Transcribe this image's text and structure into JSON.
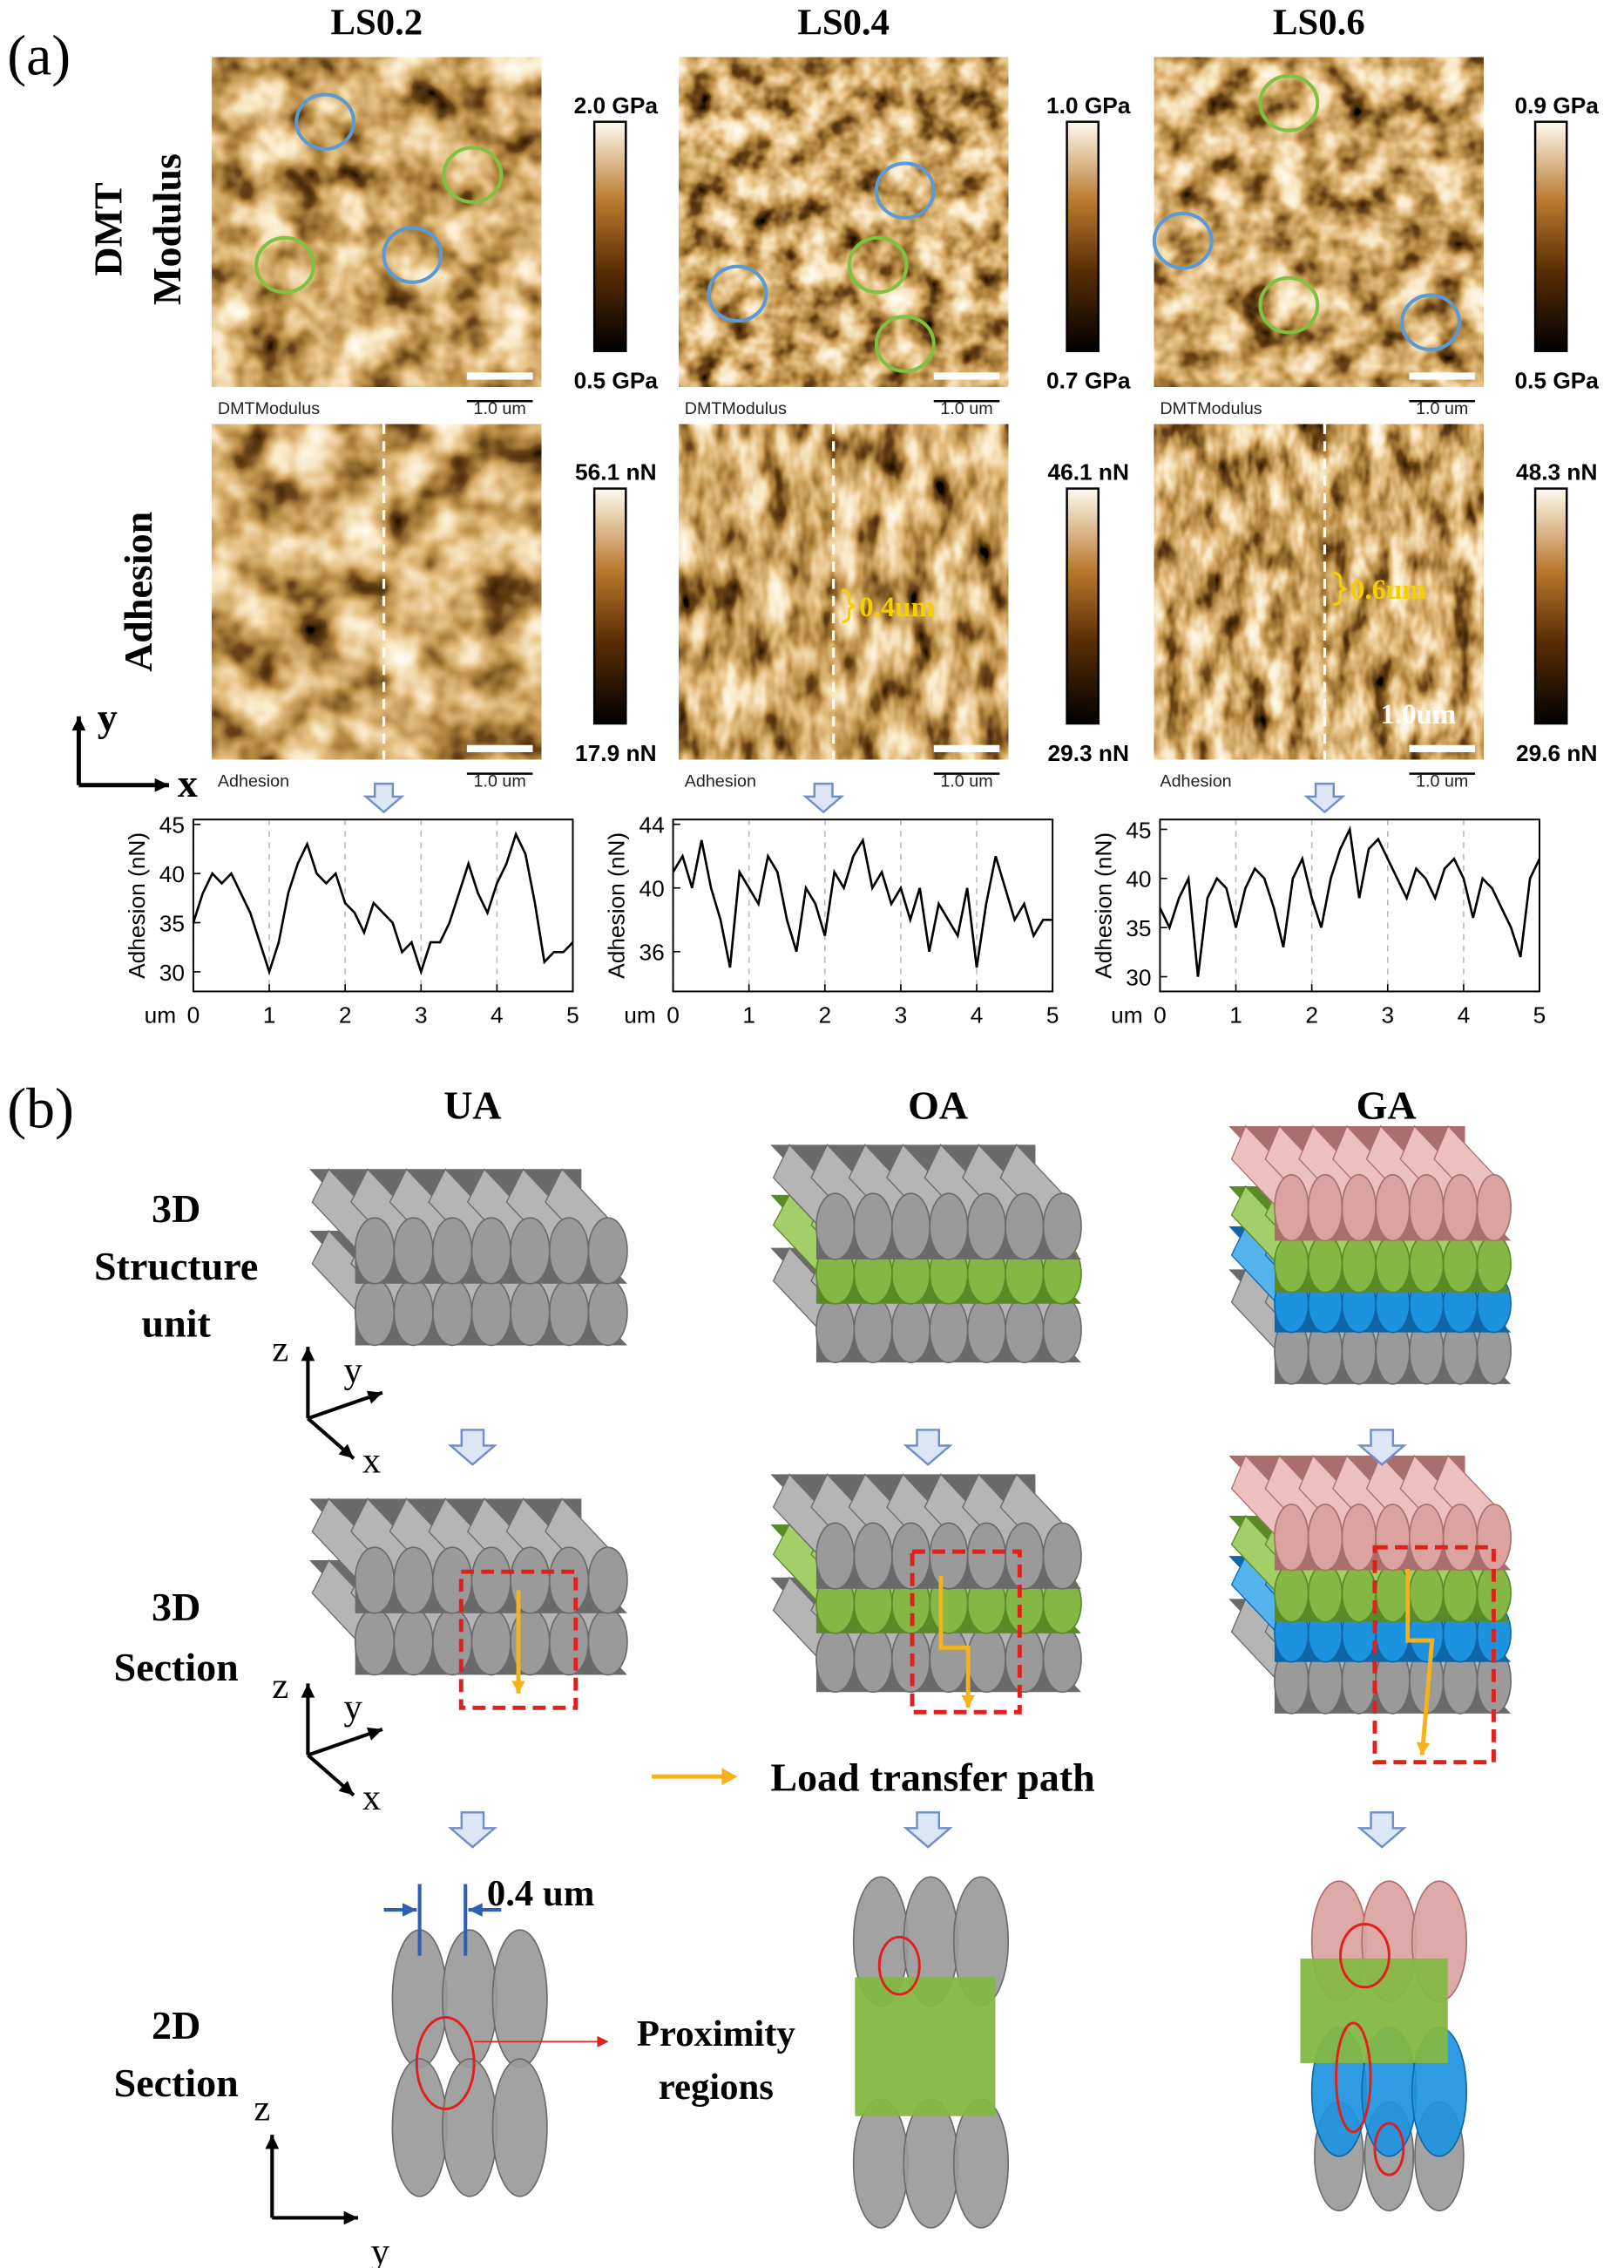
{
  "figure": {
    "panel_a": {
      "label": "(a)",
      "columns": [
        "LS0.2",
        "LS0.4",
        "LS0.6"
      ],
      "row_labels": [
        [
          "DMT",
          "Modulus"
        ],
        [
          "Adhesion"
        ]
      ],
      "axes": [
        "y",
        "x"
      ],
      "images": [
        {
          "modulus": {
            "caption": "DMTModulus",
            "scale": "1.0 um",
            "colorbar": [
              "2.0 GPa",
              "0.5 GPa"
            ]
          },
          "adhesion": {
            "caption": "Adhesion",
            "scale": "1.0 um",
            "colorbar": [
              "56.1 nN",
              "17.9 nN"
            ]
          }
        },
        {
          "modulus": {
            "caption": "DMTModulus",
            "scale": "1.0 um",
            "colorbar": [
              "1.0 GPa",
              "0.7 GPa"
            ]
          },
          "adhesion": {
            "caption": "Adhesion",
            "scale": "1.0 um",
            "colorbar": [
              "46.1 nN",
              "29.3 nN"
            ],
            "annotation": "0.4um"
          }
        },
        {
          "modulus": {
            "caption": "DMTModulus",
            "scale": "1.0 um",
            "colorbar": [
              "0.9 GPa",
              "0.5 GPa"
            ]
          },
          "adhesion": {
            "caption": "Adhesion",
            "scale": "1.0 um",
            "colorbar": [
              "48.3 nN",
              "29.6 nN"
            ],
            "annotation": "0.6um",
            "scale_text": "1.0um"
          }
        }
      ]
    },
    "panel_b": {
      "label": "(b)",
      "columns": [
        "UA",
        "OA",
        "GA"
      ],
      "row_labels": [
        [
          "3D",
          "Structure",
          "unit"
        ],
        [
          "3D",
          "Section"
        ],
        [
          "2D",
          "Section"
        ]
      ],
      "axes_3d": [
        "z",
        "y",
        "x"
      ],
      "axes_2d": [
        "z",
        "y"
      ],
      "legend": "Load transfer path",
      "dimension": "0.4 um",
      "callout": [
        "Proximity",
        "regions"
      ]
    }
  },
  "chart_data": [
    {
      "type": "line",
      "y_label": "Adhesion (nN)",
      "x_label": "um",
      "color": "#000000",
      "grid": true,
      "x": [
        0,
        0.125,
        0.25,
        0.375,
        0.5,
        0.625,
        0.75,
        0.875,
        1,
        1.125,
        1.25,
        1.375,
        1.5,
        1.625,
        1.75,
        1.875,
        2,
        2.125,
        2.25,
        2.375,
        2.5,
        2.625,
        2.75,
        2.875,
        3,
        3.125,
        3.25,
        3.375,
        3.5,
        3.625,
        3.75,
        3.875,
        4,
        4.125,
        4.25,
        4.375,
        4.5,
        4.625,
        4.75,
        4.875,
        5
      ],
      "values": [
        35,
        38,
        40,
        39,
        40,
        38,
        36,
        33,
        30,
        33,
        38,
        41,
        43,
        40,
        39,
        40,
        37,
        36,
        34,
        37,
        36,
        35,
        32,
        33,
        30,
        33,
        33,
        35,
        38,
        41,
        38,
        36,
        39,
        41,
        44,
        42,
        37,
        31,
        32,
        32,
        33
      ],
      "xlim": [
        0,
        5
      ],
      "xticks": [
        0,
        1,
        2,
        3,
        4,
        5
      ],
      "ylim": [
        28,
        45.5
      ],
      "yticks": [
        30,
        35,
        40,
        45
      ]
    },
    {
      "type": "line",
      "y_label": "Adhesion (nN)",
      "x_label": "um",
      "color": "#000000",
      "grid": true,
      "x": [
        0,
        0.125,
        0.25,
        0.375,
        0.5,
        0.625,
        0.75,
        0.875,
        1,
        1.125,
        1.25,
        1.375,
        1.5,
        1.625,
        1.75,
        1.875,
        2,
        2.125,
        2.25,
        2.375,
        2.5,
        2.625,
        2.75,
        2.875,
        3,
        3.125,
        3.25,
        3.375,
        3.5,
        3.625,
        3.75,
        3.875,
        4,
        4.125,
        4.25,
        4.375,
        4.5,
        4.625,
        4.75,
        4.875,
        5
      ],
      "values": [
        41,
        42,
        40,
        43,
        40,
        38,
        35,
        41,
        40,
        39,
        42,
        41,
        38,
        36,
        40,
        39,
        37,
        41,
        40,
        42,
        43,
        40,
        41,
        39,
        40,
        38,
        40,
        36,
        39,
        38,
        37,
        40,
        35,
        39,
        42,
        40,
        38,
        39,
        37,
        38,
        38
      ],
      "xlim": [
        0,
        5
      ],
      "xticks": [
        0,
        1,
        2,
        3,
        4,
        5
      ],
      "ylim": [
        33.5,
        44.3
      ],
      "yticks": [
        36,
        40,
        44
      ]
    },
    {
      "type": "line",
      "y_label": "Adhesion (nN)",
      "x_label": "um",
      "color": "#000000",
      "grid": true,
      "x": [
        0,
        0.125,
        0.25,
        0.375,
        0.5,
        0.625,
        0.75,
        0.875,
        1,
        1.125,
        1.25,
        1.375,
        1.5,
        1.625,
        1.75,
        1.875,
        2,
        2.125,
        2.25,
        2.375,
        2.5,
        2.625,
        2.75,
        2.875,
        3,
        3.125,
        3.25,
        3.375,
        3.5,
        3.625,
        3.75,
        3.875,
        4,
        4.125,
        4.25,
        4.375,
        4.5,
        4.625,
        4.75,
        4.875,
        5
      ],
      "values": [
        37,
        35,
        38,
        40,
        30,
        38,
        40,
        39,
        35,
        39,
        41,
        40,
        37,
        33,
        40,
        42,
        38,
        35,
        40,
        43,
        45,
        38,
        43,
        44,
        42,
        40,
        38,
        41,
        40,
        38,
        41,
        42,
        40,
        36,
        40,
        39,
        37,
        35,
        32,
        40,
        42
      ],
      "xlim": [
        0,
        5
      ],
      "xticks": [
        0,
        1,
        2,
        3,
        4,
        5
      ],
      "ylim": [
        28.5,
        46
      ],
      "yticks": [
        30,
        35,
        40,
        45
      ]
    }
  ]
}
